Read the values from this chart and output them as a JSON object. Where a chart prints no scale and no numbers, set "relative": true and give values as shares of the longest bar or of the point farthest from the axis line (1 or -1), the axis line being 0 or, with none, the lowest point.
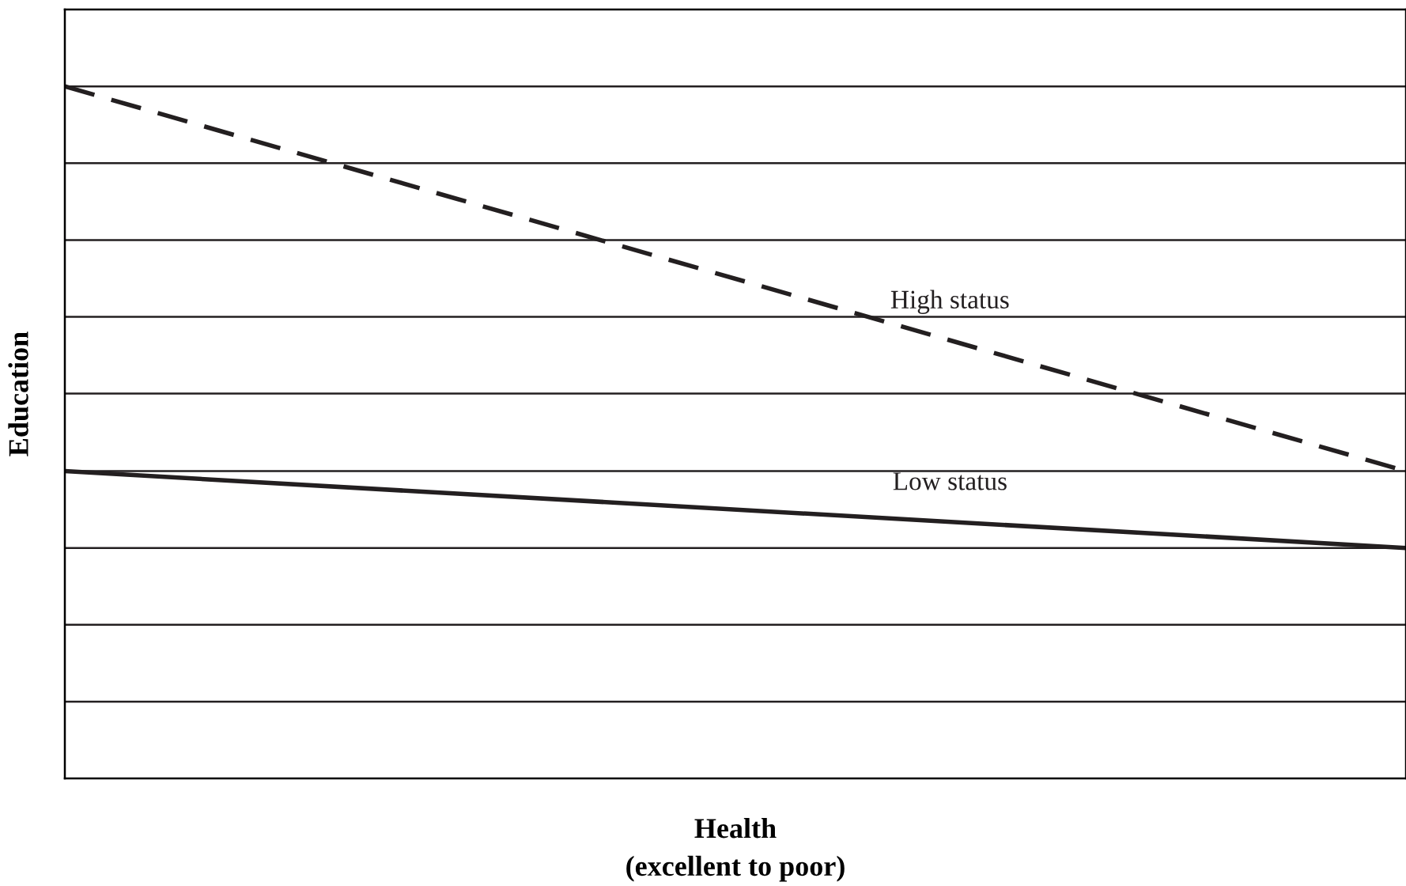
{
  "chart_data": {
    "type": "line",
    "xlabel": "Health\n(excellent to poor)",
    "ylabel": "Education",
    "categories": [
      null,
      null
    ],
    "relative": true,
    "ref_lines": [
      {
        "axis": "y",
        "value": 0.111
      },
      {
        "axis": "y",
        "value": 0.222
      },
      {
        "axis": "y",
        "value": 0.333
      },
      {
        "axis": "y",
        "value": 0.444
      },
      {
        "axis": "y",
        "value": 0.556
      },
      {
        "axis": "y",
        "value": 0.667
      },
      {
        "axis": "y",
        "value": 0.778
      },
      {
        "axis": "y",
        "value": 0.889
      },
      {
        "axis": "y",
        "value": 1.0
      }
    ],
    "series": [
      {
        "name": "High status",
        "color": "#231f20",
        "values": [
          1,
          0.444
        ],
        "line_style": "dashed"
      },
      {
        "name": "Low status",
        "color": "#231f20",
        "values": [
          0.444,
          0.333
        ],
        "line_style": "solid"
      }
    ]
  }
}
